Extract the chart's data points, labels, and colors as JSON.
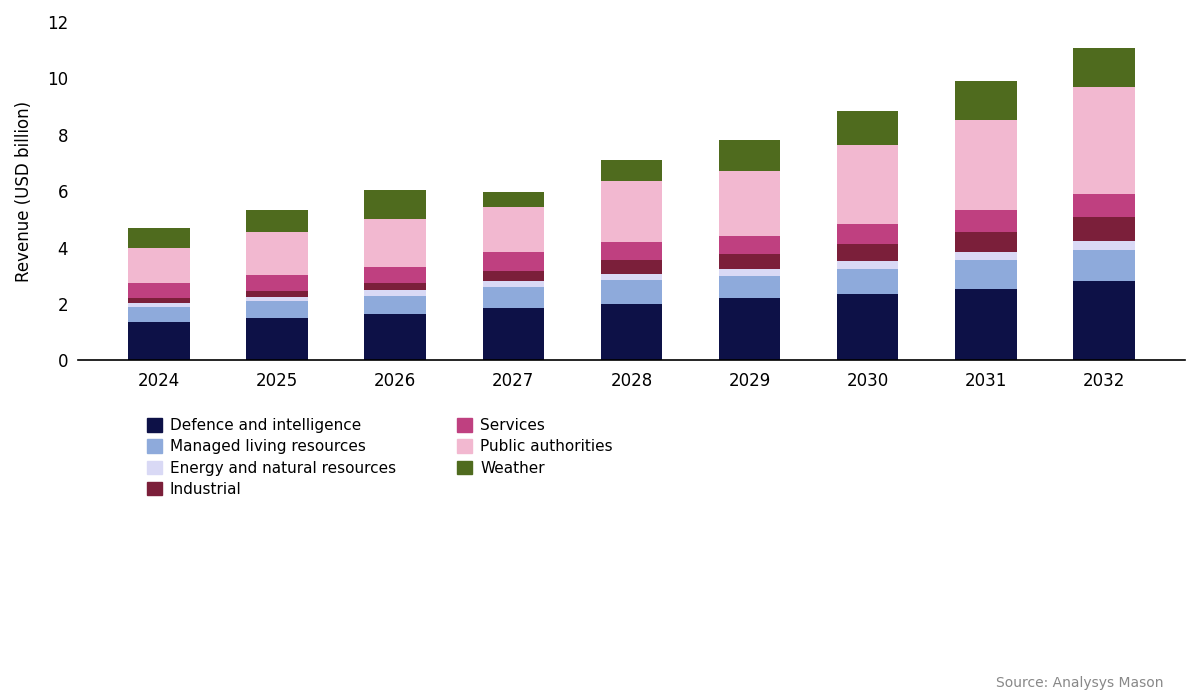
{
  "years": [
    2024,
    2025,
    2026,
    2027,
    2028,
    2029,
    2030,
    2031,
    2032
  ],
  "segments": {
    "Defence and intelligence": [
      1.35,
      1.5,
      1.65,
      1.85,
      2.0,
      2.2,
      2.35,
      2.55,
      2.8
    ],
    "Managed living resources": [
      0.55,
      0.6,
      0.65,
      0.75,
      0.85,
      0.8,
      0.9,
      1.0,
      1.1
    ],
    "Energy and natural resources": [
      0.15,
      0.15,
      0.18,
      0.2,
      0.22,
      0.25,
      0.28,
      0.3,
      0.35
    ],
    "Industrial": [
      0.18,
      0.22,
      0.25,
      0.38,
      0.48,
      0.52,
      0.6,
      0.72,
      0.82
    ],
    "Services": [
      0.5,
      0.55,
      0.6,
      0.65,
      0.65,
      0.65,
      0.7,
      0.75,
      0.82
    ],
    "Public authorities": [
      1.25,
      1.55,
      1.7,
      1.6,
      2.15,
      2.3,
      2.8,
      3.2,
      3.8
    ],
    "Weather": [
      0.7,
      0.75,
      1.0,
      0.55,
      0.75,
      1.1,
      1.2,
      1.4,
      1.4
    ]
  },
  "colors": {
    "Defence and intelligence": "#0d1147",
    "Managed living resources": "#8eaadb",
    "Energy and natural resources": "#d9d9f5",
    "Industrial": "#7b1f3a",
    "Services": "#bf4080",
    "Public authorities": "#f2b8d0",
    "Weather": "#4f6b1e"
  },
  "ylabel": "Revenue (USD billion)",
  "ylim": [
    0,
    12
  ],
  "yticks": [
    0,
    2,
    4,
    6,
    8,
    10,
    12
  ],
  "source_text": "Source: Analysys Mason",
  "background_color": "#ffffff",
  "legend_left_col": [
    "Defence and intelligence",
    "Energy and natural resources",
    "Services",
    "Weather"
  ],
  "legend_right_col": [
    "Managed living resources",
    "Industrial",
    "Public authorities"
  ]
}
